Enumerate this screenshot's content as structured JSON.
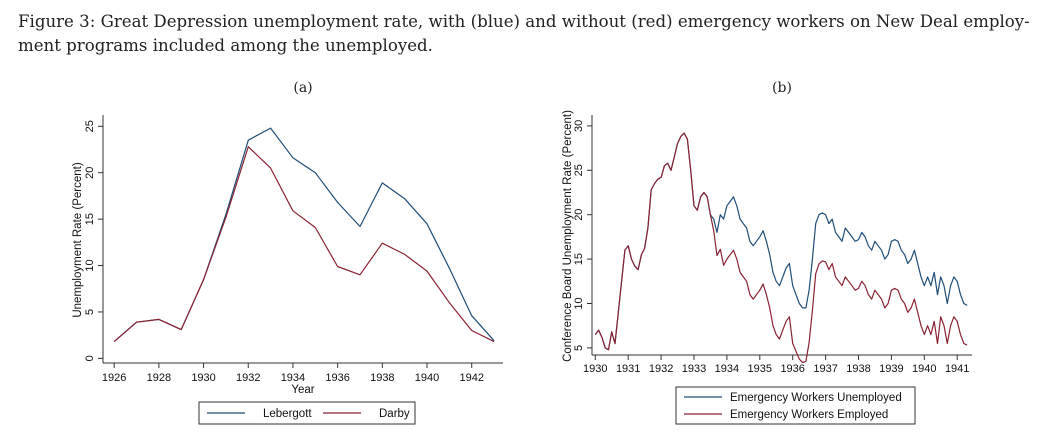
{
  "caption": {
    "line1": "Figure 3: Great Depression unemployment rate, with (blue) and without (red) emergency workers on New Deal employ-",
    "line2": "ment programs included among the unemployed."
  },
  "colors": {
    "blue": "#1f4e79",
    "red": "#8b2232",
    "axis": "#333333"
  },
  "chart_data": [
    {
      "panel_label": "(a)",
      "type": "line",
      "xlabel": "Year",
      "ylabel": "Unemployment Rate (Percent)",
      "xlim": [
        1925.5,
        1943.4
      ],
      "ylim": [
        -0.5,
        26
      ],
      "xticks": [
        "1926",
        "1928",
        "1930",
        "1932",
        "1934",
        "1936",
        "1938",
        "1940",
        "1942"
      ],
      "yticks": [
        "0",
        "5",
        "10",
        "15",
        "20",
        "25"
      ],
      "series": [
        {
          "name": "Lebergott",
          "color_key": "blue",
          "x": [
            1926,
            1927,
            1928,
            1929,
            1930,
            1931,
            1932,
            1933,
            1934,
            1935,
            1936,
            1937,
            1938,
            1939,
            1940,
            1941,
            1942,
            1943
          ],
          "values": [
            1.8,
            3.9,
            4.2,
            3.1,
            8.5,
            15.5,
            23.5,
            24.8,
            21.6,
            20.0,
            16.8,
            14.2,
            18.9,
            17.2,
            14.5,
            9.7,
            4.6,
            1.9
          ]
        },
        {
          "name": "Darby",
          "color_key": "red",
          "x": [
            1926,
            1927,
            1928,
            1929,
            1930,
            1931,
            1932,
            1933,
            1934,
            1935,
            1936,
            1937,
            1938,
            1939,
            1940,
            1941,
            1942,
            1943
          ],
          "values": [
            1.8,
            3.9,
            4.2,
            3.1,
            8.5,
            15.2,
            22.8,
            20.5,
            15.9,
            14.1,
            9.9,
            9.0,
            12.4,
            11.2,
            9.4,
            6.0,
            3.0,
            1.8
          ]
        }
      ],
      "legend": [
        "Lebergott",
        "Darby"
      ]
    },
    {
      "panel_label": "(b)",
      "type": "line",
      "xlabel": "",
      "ylabel": "Conference Board Unemployment Rate (Percent)",
      "xlim": [
        1929.9,
        1941.45
      ],
      "ylim": [
        4.2,
        31
      ],
      "xticks": [
        "1930",
        "1931",
        "1932",
        "1933",
        "1934",
        "1935",
        "1936",
        "1937",
        "1938",
        "1939",
        "1940",
        "1941"
      ],
      "yticks": [
        "5",
        "10",
        "15",
        "20",
        "25",
        "30"
      ],
      "series": [
        {
          "name": "Emergency Workers Unemployed",
          "color_key": "blue",
          "x": [
            1930.0,
            1930.1,
            1930.2,
            1930.3,
            1930.4,
            1930.5,
            1930.6,
            1930.7,
            1930.8,
            1930.9,
            1931.0,
            1931.1,
            1931.2,
            1931.3,
            1931.4,
            1931.5,
            1931.6,
            1931.7,
            1931.8,
            1931.9,
            1932.0,
            1932.1,
            1932.2,
            1932.3,
            1932.4,
            1932.5,
            1932.6,
            1932.7,
            1932.8,
            1932.9,
            1933.0,
            1933.1,
            1933.2,
            1933.3,
            1933.4,
            1933.5,
            1933.6,
            1933.7,
            1933.8,
            1933.9,
            1934.0,
            1934.1,
            1934.2,
            1934.3,
            1934.4,
            1934.5,
            1934.6,
            1934.7,
            1934.8,
            1934.9,
            1935.0,
            1935.1,
            1935.2,
            1935.3,
            1935.4,
            1935.5,
            1935.6,
            1935.7,
            1935.8,
            1935.9,
            1936.0,
            1936.1,
            1936.2,
            1936.3,
            1936.4,
            1936.5,
            1936.6,
            1936.7,
            1936.8,
            1936.9,
            1937.0,
            1937.1,
            1937.2,
            1937.3,
            1937.4,
            1937.5,
            1937.6,
            1937.7,
            1937.8,
            1937.9,
            1938.0,
            1938.1,
            1938.2,
            1938.3,
            1938.4,
            1938.5,
            1938.6,
            1938.7,
            1938.8,
            1938.9,
            1939.0,
            1939.1,
            1939.2,
            1939.3,
            1939.4,
            1939.5,
            1939.6,
            1939.7,
            1939.8,
            1939.9,
            1940.0,
            1940.1,
            1940.2,
            1940.3,
            1940.4,
            1940.5,
            1940.6,
            1940.7,
            1940.8,
            1940.9,
            1941.0,
            1941.1,
            1941.2,
            1941.3
          ],
          "values": [
            6.5,
            7.0,
            6.2,
            5.0,
            4.8,
            6.8,
            5.5,
            9.0,
            12.5,
            16.0,
            16.5,
            15.0,
            14.2,
            13.8,
            15.5,
            16.2,
            18.5,
            22.8,
            23.5,
            24.0,
            24.2,
            25.5,
            25.8,
            25.0,
            26.5,
            28.0,
            28.8,
            29.2,
            28.5,
            25.0,
            21.0,
            20.5,
            22.0,
            22.5,
            22.0,
            20.0,
            19.5,
            18.0,
            20.0,
            19.5,
            21.0,
            21.5,
            22.0,
            21.0,
            19.5,
            19.0,
            18.5,
            17.0,
            16.5,
            17.0,
            17.5,
            18.2,
            17.0,
            15.5,
            13.5,
            12.5,
            12.0,
            13.0,
            14.0,
            14.5,
            12.0,
            11.0,
            10.0,
            9.5,
            9.5,
            11.5,
            15.0,
            19.0,
            20.0,
            20.2,
            20.0,
            19.0,
            19.5,
            18.0,
            17.5,
            17.0,
            18.5,
            18.0,
            17.5,
            17.0,
            17.2,
            18.0,
            17.5,
            16.5,
            16.0,
            17.0,
            16.5,
            16.0,
            15.0,
            15.5,
            17.0,
            17.2,
            17.0,
            16.0,
            15.5,
            14.5,
            15.0,
            16.0,
            14.5,
            13.0,
            12.0,
            13.0,
            12.0,
            13.5,
            11.0,
            13.0,
            12.0,
            10.0,
            12.0,
            13.0,
            12.5,
            11.0,
            10.0,
            9.8
          ],
          "x_note": "placeholder"
        },
        {
          "name": "Emergency Workers Employed",
          "color_key": "red",
          "x": [],
          "values": []
        }
      ],
      "legend": [
        "Emergency Workers Unemployed",
        "Emergency Workers Employed"
      ]
    }
  ]
}
